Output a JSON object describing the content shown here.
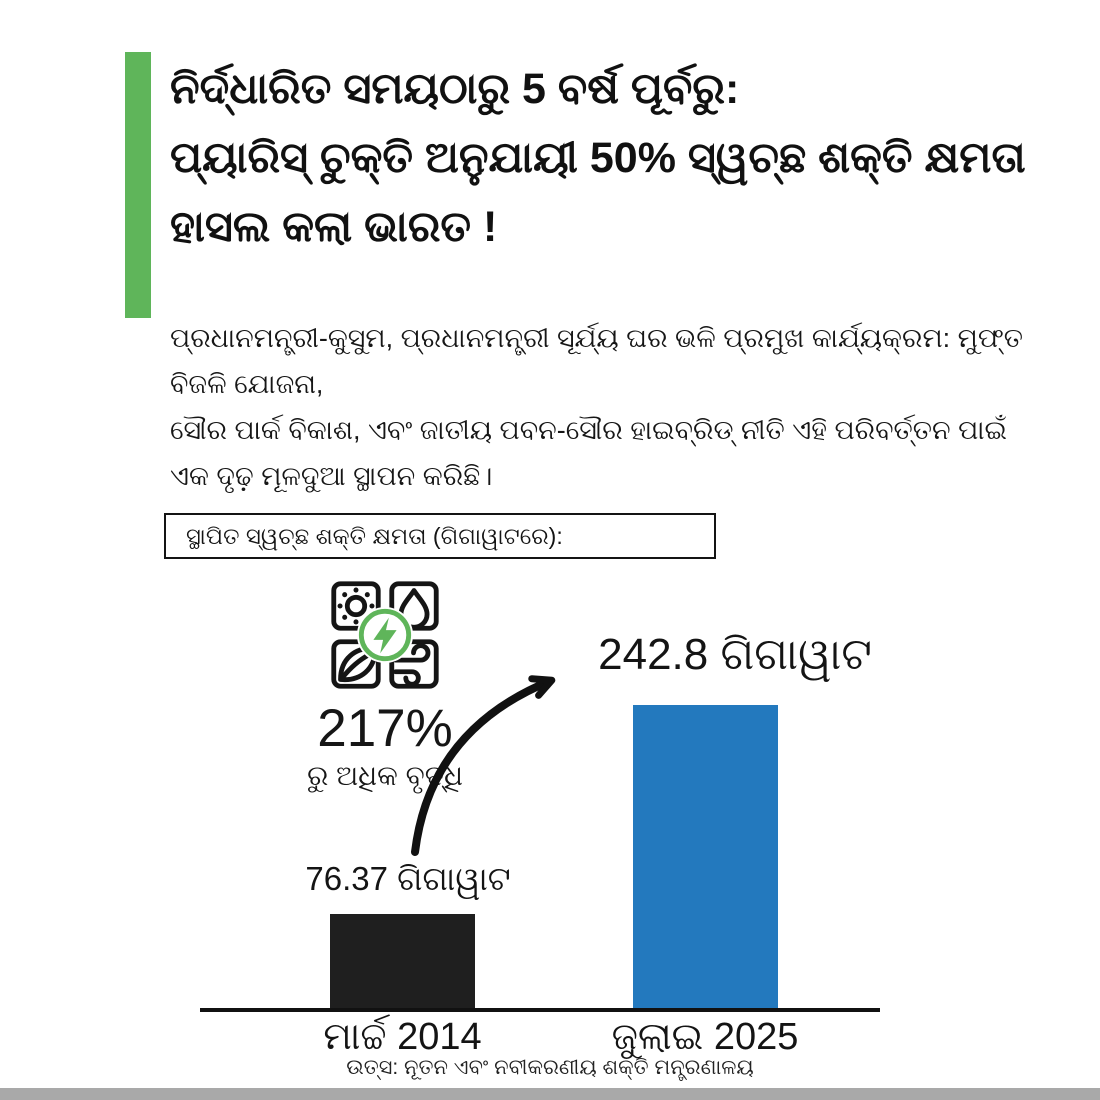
{
  "page": {
    "accent_color": "#5FB55A",
    "icon_green": "#5FB55A",
    "text_color": "#141414",
    "footer_strip_color": "#A9A9A9"
  },
  "header": {
    "title_lines": [
      "ନିର୍ଦ୍ଧାରିତ ସମୟଠାରୁ 5 ବର୍ଷ ପୂର୍ବରୁ:",
      "ପ୍ୟାରିସ୍ ଚୁକ୍ତି ଅନୁଯାୟୀ 50% ସ୍ୱଚ୍ଛ ଶକ୍ତି କ୍ଷମତା",
      "ହାସଲ କଲା ଭାରତ !"
    ],
    "body_lines": [
      "ପ୍ରଧାନମନ୍ତ୍ରୀ-କୁସୁମ, ପ୍ରଧାନମନ୍ତ୍ରୀ ସୂର୍ଯ୍ୟ ଘର ଭଳି ପ୍ରମୁଖ କାର୍ଯ୍ୟକ୍ରମ: ମୁଫ୍ତ ବିଜଳି ଯୋଜନା,",
      "ସୌର ପାର୍କ ବିକାଶ, ଏବଂ ଜାତୀୟ ପବନ-ସୌର ହାଇବ୍ରିଡ୍ ନୀତି ଏହି ପରିବର୍ତ୍ତନ ପାଇଁ",
      "ଏକ ଦୃଢ଼ ମୂଳଦୁଆ ସ୍ଥାପନ କରିଛି।"
    ]
  },
  "chart": {
    "box_label": "ସ୍ଥାପିତ ସ୍ୱଚ୍ଛ ଶକ୍ତି କ୍ଷମତା (ଗିଗାୱାଟରେ):",
    "icon_name": "clean-energy-grid-icon",
    "growth_value": "217%",
    "growth_caption": "ରୁ ଅଧିକ ବୃଦ୍ଧି",
    "bar1_value_label": "76.37 ଗିଗାୱାଟ",
    "bar2_value_label": "242.8 ଗିଗାୱାଟ",
    "bar1_category": "ମାର୍ଚ୍ଚ 2014",
    "bar2_category": "ଜୁଲାଇ 2025",
    "source": "ଉତ୍ସ: ନୂତନ ଏବଂ ନବୀକରଣୀୟ ଶକ୍ତି ମନ୍ତ୍ରଣାଳୟ"
  },
  "chart_data": {
    "type": "bar",
    "title": "ସ୍ଥାପିତ ସ୍ୱଚ୍ଛ ଶକ୍ତି କ୍ଷମତା (ଗିଗାୱାଟରେ):",
    "categories": [
      "ମାର୍ଚ୍ଚ 2014",
      "ଜୁଲାଇ 2025"
    ],
    "values": [
      76.37,
      242.8
    ],
    "value_labels": [
      "76.37 ଗିଗାୱାଟ",
      "242.8 ଗିଗାୱାଟ"
    ],
    "unit": "GW (ଗିଗାୱାଟ)",
    "bar_colors": [
      "#1F1F1F",
      "#2379BE"
    ],
    "annotation": "217% ରୁ ଅଧିକ ବୃଦ୍ଧି",
    "xlabel": "",
    "ylabel": "",
    "ylim": [
      0,
      260
    ],
    "grid": false,
    "legend": false,
    "source": "ଉତ୍ସ: ନୂତନ ଏବଂ ନବୀକରଣୀୟ ଶକ୍ତି ମନ୍ତ୍ରଣାଳୟ"
  }
}
